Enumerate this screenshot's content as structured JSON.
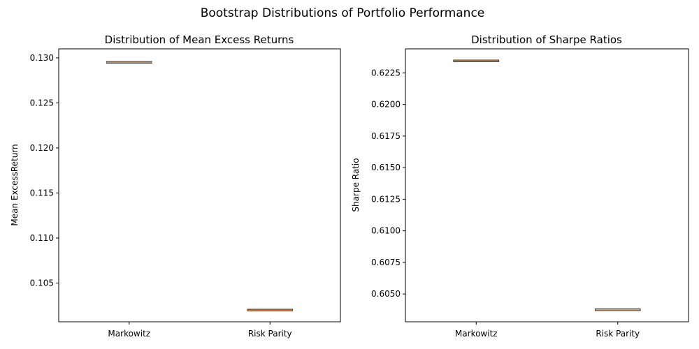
{
  "figure": {
    "suptitle": "Bootstrap Distributions of Portfolio Performance"
  },
  "chart_data": [
    {
      "type": "box",
      "title": "Distribution of Mean Excess Returns",
      "xlabel": "",
      "ylabel": "Mean ExcessReturn",
      "categories": [
        "Markowitz",
        "Risk Parity"
      ],
      "ylim": [
        0.1007,
        0.131
      ],
      "yticks": [
        0.105,
        0.11,
        0.115,
        0.12,
        0.125,
        0.13
      ],
      "ytick_labels": [
        "0.105",
        "0.110",
        "0.115",
        "0.120",
        "0.125",
        "0.130"
      ],
      "values": [
        0.1295,
        0.102
      ],
      "grid": false,
      "colors": {
        "box": "#000000",
        "median": "#ff7f0e"
      }
    },
    {
      "type": "box",
      "title": "Distribution of Sharpe Ratios",
      "xlabel": "",
      "ylabel": "Sharpe Ratio",
      "categories": [
        "Markowitz",
        "Risk Parity"
      ],
      "ylim": [
        0.6028,
        0.6244
      ],
      "yticks": [
        0.605,
        0.6075,
        0.61,
        0.6125,
        0.615,
        0.6175,
        0.62,
        0.6225
      ],
      "ytick_labels": [
        "0.6050",
        "0.6075",
        "0.6100",
        "0.6125",
        "0.6150",
        "0.6175",
        "0.6200",
        "0.6225"
      ],
      "values": [
        0.62345,
        0.60375
      ],
      "grid": false,
      "colors": {
        "box": "#000000",
        "median": "#ff7f0e"
      }
    }
  ]
}
